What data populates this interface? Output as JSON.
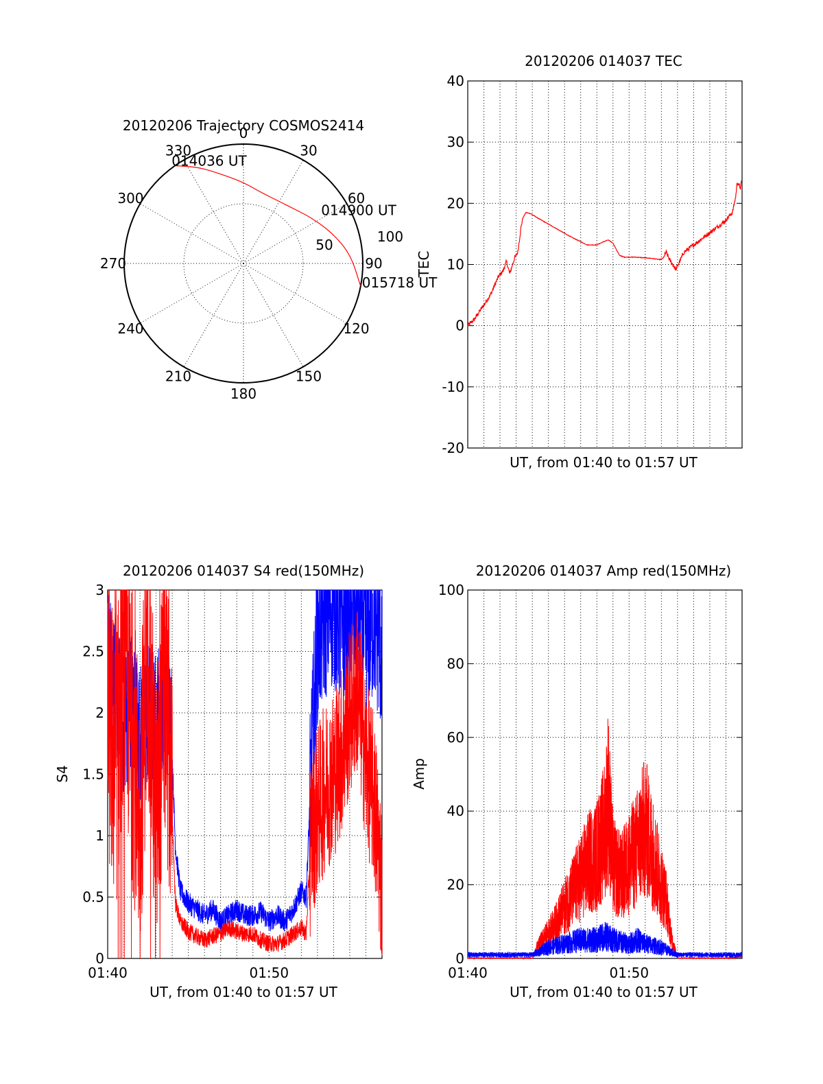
{
  "chart_data": [
    {
      "type": "scatter",
      "subtype": "polar",
      "title": "20120206 Trajectory COSMOS2414",
      "angle_ticks": [
        "0",
        "30",
        "60",
        "90",
        "120",
        "150",
        "180",
        "210",
        "240",
        "270",
        "300",
        "330"
      ],
      "radial_ticks": [
        "50",
        "100"
      ],
      "rlim": [
        0,
        100
      ],
      "grid": true,
      "series": [
        {
          "color": "#ff0000",
          "points_az_r": [
            [
              325,
              100
            ],
            [
              335,
              89
            ],
            [
              345,
              78
            ],
            [
              0,
              68
            ],
            [
              15,
              61
            ],
            [
              30,
              60
            ],
            [
              42,
              62
            ],
            [
              55,
              68
            ],
            [
              70,
              78
            ],
            [
              85,
              90
            ],
            [
              101,
              100
            ]
          ]
        }
      ],
      "annotations": [
        {
          "text": "014036 UT",
          "az": 325,
          "r": 100
        },
        {
          "text": "014900 UT",
          "az": 58,
          "r": 70
        },
        {
          "text": "015718 UT",
          "az": 101,
          "r": 100
        }
      ]
    },
    {
      "type": "line",
      "title": "20120206 014037 TEC",
      "xlabel": "UT, from 01:40 to 01:57 UT",
      "ylabel": "TEC",
      "xlim": [
        0.6,
        17.6
      ],
      "ylim": [
        -20,
        40
      ],
      "yticks": [
        "-20",
        "-10",
        "0",
        "10",
        "20",
        "30",
        "40"
      ],
      "grid": true,
      "series": [
        {
          "color": "#ff0000",
          "x": [
            0.6,
            1.0,
            1.5,
            2.0,
            2.5,
            2.8,
            3.0,
            3.1,
            3.2,
            3.5,
            3.7,
            3.9,
            4.0,
            4.2,
            4.5,
            5.0,
            6.0,
            7.0,
            8.0,
            8.6,
            9.0,
            9.3,
            9.6,
            9.8,
            10.0,
            10.3,
            11.0,
            12.0,
            12.5,
            12.7,
            12.9,
            13.1,
            13.5,
            14.0,
            15.0,
            16.0,
            16.5,
            17.0,
            17.2,
            17.3,
            17.5,
            17.6
          ],
          "y": [
            0,
            1,
            3,
            5,
            8,
            9,
            10.5,
            9.5,
            8.5,
            11,
            12,
            16,
            17.5,
            18.5,
            18.3,
            17.5,
            16,
            14.5,
            13.2,
            13.2,
            13.7,
            14,
            13.5,
            12.5,
            11.5,
            11.2,
            11.2,
            11,
            10.8,
            11,
            12,
            10.8,
            9.2,
            12,
            14,
            16,
            17,
            18.5,
            21,
            23.5,
            22.5,
            24
          ]
        }
      ]
    },
    {
      "type": "line",
      "title": "20120206 014037 S4 red(150MHz)",
      "xlabel": "UT, from 01:40 to 01:57 UT",
      "ylabel": "S4",
      "xlim": [
        0,
        17
      ],
      "ylim": [
        0,
        3
      ],
      "xticks": [
        "01:40",
        "01:50"
      ],
      "yticks": [
        "0",
        "0.5",
        "1",
        "1.5",
        "2",
        "2.5",
        "3"
      ],
      "grid": true,
      "series": [
        {
          "color": "#0000ff",
          "x": [
            0.0,
            0.5,
            1.0,
            1.5,
            2.0,
            2.5,
            3.0,
            3.5,
            3.9,
            4.2,
            4.5,
            5.0,
            5.5,
            6.0,
            6.5,
            7.0,
            7.5,
            8.0,
            8.5,
            9.0,
            9.5,
            10.0,
            10.5,
            11.0,
            11.5,
            12.0,
            12.3,
            12.6,
            13.0,
            13.5,
            14.0,
            14.5,
            15.0,
            15.5,
            16.0,
            16.5,
            17.0
          ],
          "y": [
            2.5,
            2.2,
            1.9,
            2.1,
            1.8,
            2.0,
            1.9,
            2.2,
            2.0,
            0.9,
            0.55,
            0.45,
            0.4,
            0.35,
            0.4,
            0.3,
            0.35,
            0.4,
            0.35,
            0.35,
            0.38,
            0.3,
            0.35,
            0.3,
            0.4,
            0.55,
            0.5,
            1.5,
            2.6,
            2.8,
            2.9,
            2.7,
            2.8,
            2.9,
            2.6,
            2.8,
            2.5
          ]
        },
        {
          "color": "#ff0000",
          "x": [
            0.0,
            0.5,
            1.0,
            1.5,
            2.0,
            2.5,
            3.0,
            3.5,
            3.9,
            4.2,
            4.5,
            5.0,
            5.5,
            6.0,
            6.5,
            7.0,
            7.5,
            8.0,
            8.5,
            9.0,
            9.5,
            10.0,
            10.5,
            11.0,
            11.5,
            12.0,
            12.3,
            12.6,
            13.0,
            13.5,
            14.0,
            14.5,
            15.0,
            15.5,
            16.0,
            16.5,
            17.0
          ],
          "y": [
            2.0,
            1.5,
            2.5,
            1.8,
            1.2,
            2.6,
            1.0,
            2.2,
            1.5,
            0.45,
            0.3,
            0.22,
            0.18,
            0.15,
            0.18,
            0.2,
            0.25,
            0.22,
            0.2,
            0.2,
            0.15,
            0.12,
            0.12,
            0.15,
            0.2,
            0.25,
            0.2,
            1.0,
            1.2,
            1.4,
            1.5,
            1.7,
            2.0,
            2.2,
            1.6,
            1.3,
            0.6
          ]
        }
      ]
    },
    {
      "type": "line",
      "title": "20120206 014037 Amp red(150MHz)",
      "xlabel": "UT, from 01:40 to 01:57 UT",
      "ylabel": "Amp",
      "xlim": [
        0,
        17
      ],
      "ylim": [
        0,
        100
      ],
      "xticks": [
        "01:40",
        "01:50"
      ],
      "yticks": [
        "0",
        "20",
        "40",
        "60",
        "80",
        "100"
      ],
      "grid": true,
      "series": [
        {
          "color": "#ff0000",
          "x": [
            0.0,
            1.0,
            2.0,
            3.0,
            4.0,
            4.3,
            4.6,
            5.0,
            5.5,
            6.0,
            6.5,
            7.0,
            7.5,
            8.0,
            8.5,
            8.7,
            9.0,
            9.5,
            10.0,
            10.5,
            11.0,
            11.5,
            12.0,
            12.3,
            12.6,
            13.0,
            14.0,
            15.0,
            16.0,
            17.0
          ],
          "y": [
            0,
            0,
            0,
            0,
            0,
            3,
            5,
            7,
            10,
            14,
            18,
            22,
            26,
            28,
            35,
            45,
            25,
            22,
            26,
            30,
            36,
            28,
            20,
            16,
            6,
            0,
            0,
            0,
            0,
            0.5
          ]
        },
        {
          "color": "#0000ff",
          "x": [
            0.0,
            1.0,
            2.0,
            3.0,
            4.0,
            4.5,
            5.0,
            6.0,
            7.0,
            8.0,
            8.5,
            9.0,
            10.0,
            10.5,
            11.0,
            12.0,
            12.5,
            13.0,
            14.0,
            15.0,
            16.0,
            17.0
          ],
          "y": [
            1,
            1,
            1,
            1,
            1,
            2,
            3,
            4,
            5,
            5,
            6,
            5,
            4,
            5,
            4,
            3,
            2,
            1,
            1,
            1,
            1,
            1
          ]
        }
      ]
    }
  ]
}
